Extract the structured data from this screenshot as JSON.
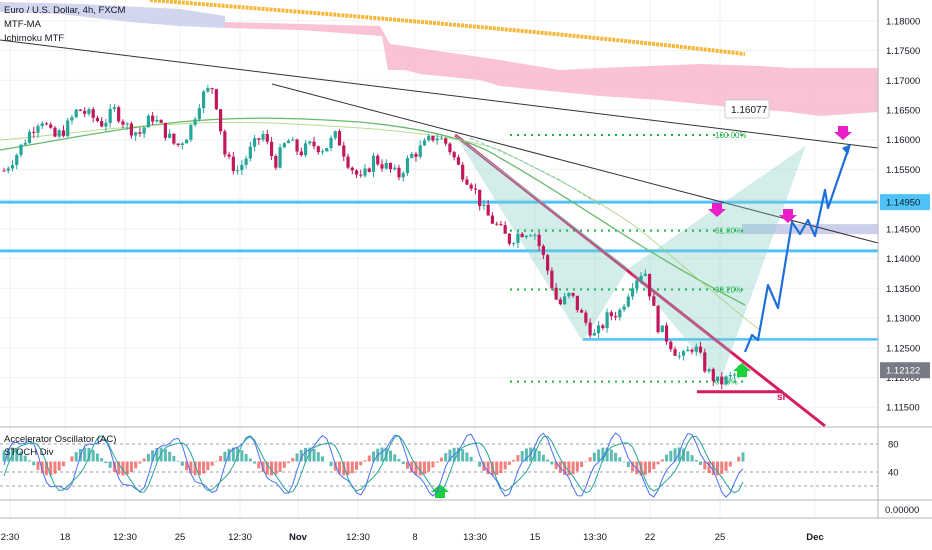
{
  "header": {
    "title": "Euro / U.S. Dollar, 4h, FXCM",
    "indicator_1": "MTF-MA",
    "indicator_2": "Ichimoku MTF"
  },
  "oscillator": {
    "title": "Accelerator Oscillator (AC)",
    "subtitle": "STOCH Div",
    "levels": [
      "80",
      "40"
    ],
    "zero_label": "0.00000"
  },
  "colors": {
    "bull": "#26a69a",
    "bear": "#ef5350",
    "trend_pink": "#d81b60",
    "level_blue": "#4fc3f7",
    "target_blue": "#1e6fd9",
    "harmonic": "#80cbc4",
    "fib_green": "#22b14c",
    "ma_gold": "#f6b73c",
    "cloud_pink": "#f8bbd0",
    "cloud_purple": "#c5cae9",
    "marker_magenta": "#e91ec8",
    "marker_green": "#1dd13a"
  },
  "chart_data": {
    "type": "candlestick",
    "symbol": "Euro / U.S. Dollar",
    "timeframe": "4h",
    "y_axis": {
      "ticks": [
        "1.18000",
        "1.17500",
        "1.17000",
        "1.16500",
        "1.16000",
        "1.15500",
        "1.15000",
        "1.14500",
        "1.14000",
        "1.13500",
        "1.13000",
        "1.12500",
        "1.12000",
        "1.11500"
      ],
      "range": [
        1.1115,
        1.1835
      ]
    },
    "x_axis": {
      "ticks": [
        "2:30",
        "18",
        "12:30",
        "25",
        "12:30",
        "Nov",
        "12:30",
        "8",
        "13:30",
        "15",
        "13:30",
        "22",
        "25",
        "Dec"
      ]
    },
    "price_labels": [
      {
        "value": "1.14950",
        "style": "highlight"
      },
      {
        "value": "1.12122",
        "style": "current"
      }
    ],
    "callout": "1.16077",
    "fib_levels": [
      {
        "label": "100.00%",
        "value": 1.1608
      },
      {
        "label": "61.80%",
        "value": 1.1447
      },
      {
        "label": "38.20%",
        "value": 1.1348
      },
      {
        "label": "0.00%",
        "value": 1.1193
      }
    ],
    "horizontal_levels": [
      1.1495,
      1.1413,
      1.1264
    ],
    "stop_label": "sl",
    "ohlc_path": [
      1.1548,
      1.1575,
      1.161,
      1.1638,
      1.1602,
      1.1618,
      1.1652,
      1.164,
      1.1627,
      1.165,
      1.1622,
      1.161,
      1.164,
      1.1615,
      1.1588,
      1.1612,
      1.1672,
      1.169,
      1.1568,
      1.1548,
      1.1582,
      1.161,
      1.156,
      1.16,
      1.1578,
      1.1592,
      1.1585,
      1.1608,
      1.156,
      1.153,
      1.1568,
      1.1555,
      1.1538,
      1.1572,
      1.1588,
      1.1608,
      1.1592,
      1.155,
      1.1525,
      1.1478,
      1.1455,
      1.143,
      1.1445,
      1.1448,
      1.139,
      1.132,
      1.134,
      1.13,
      1.1268,
      1.1302,
      1.1312,
      1.136,
      1.1383,
      1.129,
      1.126,
      1.123,
      1.1255,
      1.1213,
      1.119,
      1.12,
      1.1212
    ]
  }
}
